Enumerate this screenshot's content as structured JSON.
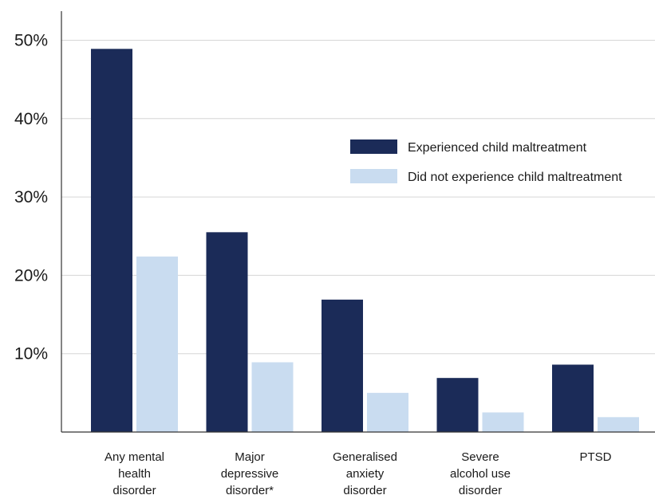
{
  "chart_data": {
    "type": "bar",
    "categories": [
      [
        "Any mental",
        "health",
        "disorder"
      ],
      [
        "Major",
        "depressive",
        "disorder*"
      ],
      [
        "Generalised",
        "anxiety",
        "disorder"
      ],
      [
        "Severe",
        "alcohol use",
        "disorder"
      ],
      [
        "PTSD"
      ]
    ],
    "series": [
      {
        "name": "Experienced child maltreatment",
        "color": "#1b2b58",
        "values": [
          48.9,
          25.5,
          16.9,
          6.9,
          8.6
        ]
      },
      {
        "name": "Did not experience child maltreatment",
        "color": "#c9dcf0",
        "values": [
          22.4,
          8.9,
          5.0,
          2.5,
          1.9
        ]
      }
    ],
    "yticks": [
      "10%",
      "20%",
      "30%",
      "40%",
      "50%"
    ],
    "ytick_values": [
      10,
      20,
      30,
      40,
      50
    ],
    "ylim": [
      0,
      55
    ],
    "grid": true,
    "legend_position": "top-right",
    "title": "",
    "xlabel": "",
    "ylabel": ""
  }
}
